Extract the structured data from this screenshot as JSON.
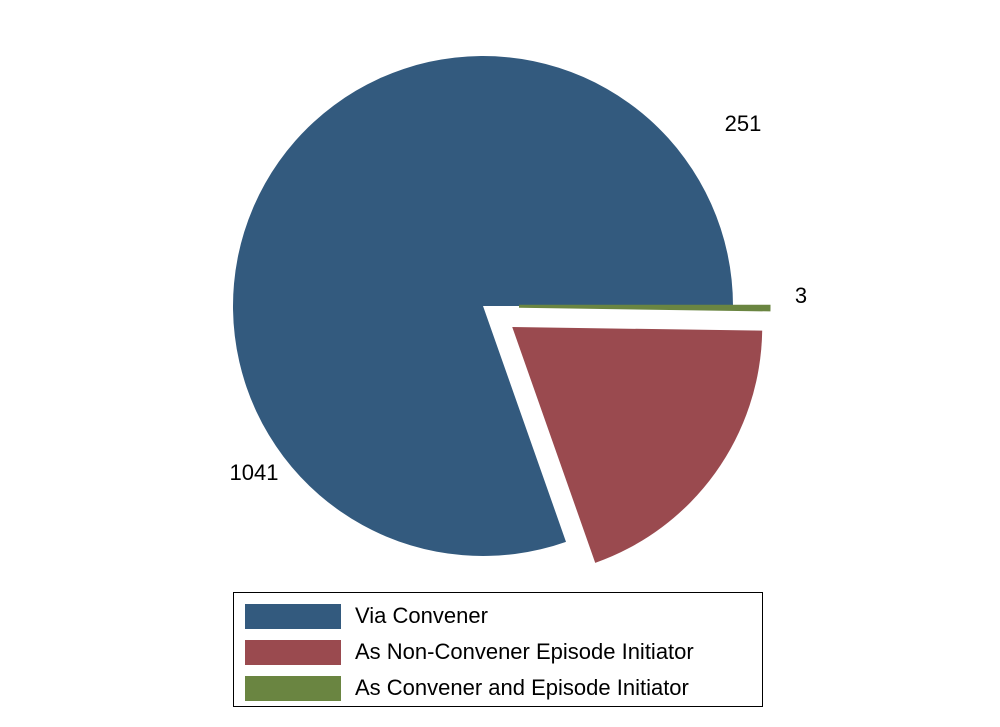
{
  "chart_data": {
    "type": "pie",
    "slices": [
      {
        "label": "Via Convener",
        "value": 1041,
        "value_label": "1041",
        "color": "#335a7e",
        "exploded": false
      },
      {
        "label": "As Non-Convener Episode Initiator",
        "value": 251,
        "value_label": "251",
        "color": "#9a4a4f",
        "exploded": true
      },
      {
        "label": "As Convener and Episode Initiator",
        "value": 3,
        "value_label": "3",
        "color": "#6a8541",
        "exploded": true
      }
    ],
    "legend_position": "bottom",
    "start_angle_deg": 0,
    "direction": "counterclockwise"
  }
}
